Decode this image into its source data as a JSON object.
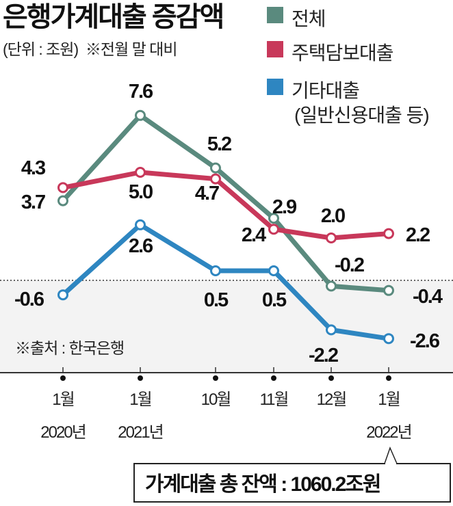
{
  "chart_data": {
    "type": "line",
    "title": "은행가계대출 증감액",
    "subtitle": "(단위 : 조원)  ※전월 말 대비",
    "source": "※출처 : 한국은행",
    "categories": [
      {
        "month": "1월",
        "year": "2020년"
      },
      {
        "month": "1월",
        "year": "2021년"
      },
      {
        "month": "10월",
        "year": ""
      },
      {
        "month": "11월",
        "year": ""
      },
      {
        "month": "12월",
        "year": ""
      },
      {
        "month": "1월",
        "year": "2022년"
      }
    ],
    "series": [
      {
        "name": "전체",
        "name2": "",
        "color": "#5a8a7e",
        "values": [
          3.7,
          7.6,
          5.2,
          2.9,
          -0.2,
          -0.4
        ],
        "labels": [
          "3.7",
          "7.6",
          "5.2",
          "2.9",
          "-0.2",
          "-0.4"
        ]
      },
      {
        "name": "주택담보대출",
        "name2": "",
        "color": "#c8385a",
        "values": [
          4.3,
          5.0,
          4.7,
          2.4,
          2.0,
          2.2
        ],
        "labels": [
          "4.3",
          "5.0",
          "4.7",
          "2.4",
          "2.0",
          "2.2"
        ]
      },
      {
        "name": "기타대출",
        "name2": "(일반신용대출 등)",
        "color": "#2e86c1",
        "values": [
          -0.6,
          2.6,
          0.5,
          0.5,
          -2.2,
          -2.6
        ],
        "labels": [
          "-0.6",
          "2.6",
          "0.5",
          "0.5",
          "-2.2",
          "-2.6"
        ]
      }
    ],
    "legend": "top-right",
    "annotation": "가계대출 총 잔액 : 1060.2조원"
  }
}
